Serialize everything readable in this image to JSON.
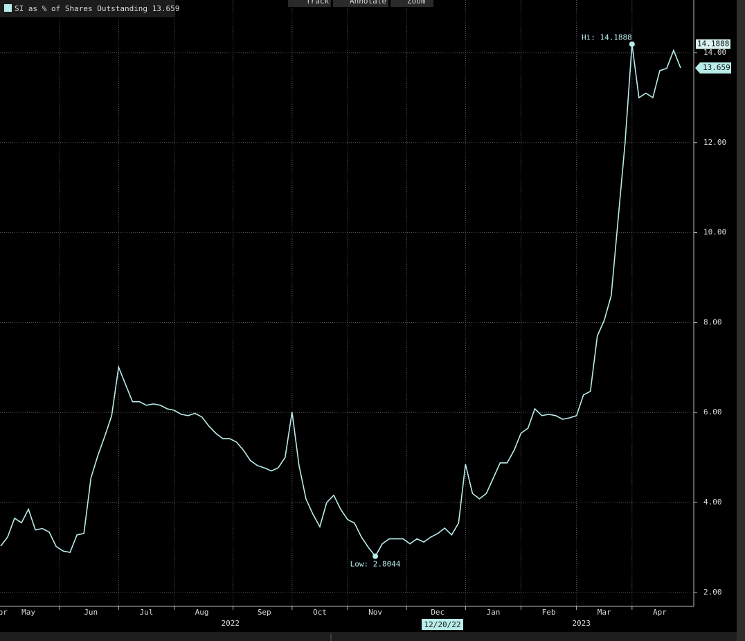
{
  "toolbar": [
    "Track",
    "Annotate",
    "Zoom"
  ],
  "chart_data": {
    "type": "line",
    "categories": [
      "Apr",
      null,
      null,
      null,
      "May",
      null,
      null,
      null,
      null,
      null,
      null,
      null,
      null,
      "Jun",
      null,
      null,
      null,
      null,
      null,
      null,
      null,
      "Jul",
      null,
      null,
      null,
      null,
      null,
      null,
      null,
      "Aug",
      null,
      null,
      null,
      null,
      null,
      null,
      null,
      null,
      "Sep",
      null,
      null,
      null,
      null,
      null,
      null,
      null,
      "Oct",
      null,
      null,
      null,
      null,
      null,
      null,
      null,
      "Nov",
      null,
      null,
      null,
      null,
      null,
      null,
      null,
      null,
      "Dec",
      null,
      null,
      null,
      null,
      null,
      null,
      null,
      "Jan",
      null,
      null,
      null,
      null,
      null,
      null,
      null,
      "Feb",
      null,
      null,
      null,
      null,
      null,
      null,
      null,
      "Mar",
      null,
      null,
      null,
      null,
      null,
      null,
      null,
      "Apr",
      null,
      null,
      null
    ],
    "year_labels": [
      "2022",
      "2023"
    ],
    "cursor_label": "12/20/22",
    "series": [
      {
        "name": "SI as % of Shares Outstanding",
        "color": "#b8ece9",
        "values": [
          3.03,
          3.23,
          3.65,
          3.55,
          3.85,
          3.39,
          3.42,
          3.34,
          3.02,
          2.92,
          2.89,
          3.28,
          3.31,
          4.54,
          5.04,
          5.47,
          5.93,
          7.01,
          6.62,
          6.24,
          6.24,
          6.16,
          6.19,
          6.16,
          6.08,
          6.05,
          5.96,
          5.93,
          5.98,
          5.9,
          5.7,
          5.54,
          5.42,
          5.42,
          5.34,
          5.16,
          4.93,
          4.82,
          4.77,
          4.7,
          4.77,
          5.0,
          6.01,
          4.82,
          4.08,
          3.74,
          3.46,
          4.0,
          4.16,
          3.85,
          3.62,
          3.54,
          3.23,
          3.0,
          2.8044,
          3.08,
          3.19,
          3.19,
          3.19,
          3.08,
          3.19,
          3.12,
          3.23,
          3.31,
          3.43,
          3.28,
          3.54,
          4.85,
          4.2,
          4.08,
          4.2,
          4.54,
          4.88,
          4.88,
          5.16,
          5.54,
          5.65,
          6.08,
          5.93,
          5.96,
          5.93,
          5.85,
          5.88,
          5.93,
          6.39,
          6.47,
          7.7,
          8.05,
          8.6,
          10.3,
          12.0,
          14.1888,
          13.0,
          13.1,
          13.0,
          13.6,
          13.65,
          14.05,
          13.659
        ]
      }
    ],
    "annotations": {
      "high": "Hi: 14.1888",
      "low": "Low: 2.8044"
    },
    "ylim": [
      1.69,
      15.17
    ],
    "yticks": [
      {
        "value": 2,
        "label": "2.00"
      },
      {
        "value": 4,
        "label": "4.00"
      },
      {
        "value": 6,
        "label": "6.00"
      },
      {
        "value": 8,
        "label": "8.00"
      },
      {
        "value": 10,
        "label": "10.00"
      },
      {
        "value": 12,
        "label": "12.00"
      },
      {
        "value": 14,
        "label": "14.00"
      }
    ],
    "grid": true
  }
}
